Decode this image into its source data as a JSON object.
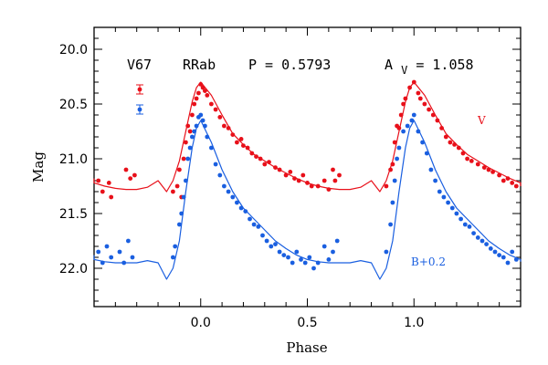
{
  "chart_data": {
    "type": "scatter",
    "xlabel": "Phase",
    "ylabel": "Mag",
    "xlim": [
      -0.5,
      1.5
    ],
    "ylim": [
      22.35,
      19.8
    ],
    "y_inverted": true,
    "xticks": [
      "0.0",
      "0.5",
      "1.0"
    ],
    "xtick_values": [
      0,
      0.5,
      1
    ],
    "yticks": [
      "20.0",
      "20.5",
      "21.0",
      "21.5",
      "22.0"
    ],
    "ytick_values": [
      20,
      20.5,
      21,
      21.5,
      22
    ],
    "grid": false,
    "annotations": {
      "star": "V67",
      "type": "RRab",
      "period": "P = 0.5793",
      "amp_prefix": "A",
      "amp_sub": "V",
      "amp_value": " = 1.058"
    },
    "series": [
      {
        "name": "V",
        "color": "#e8101a",
        "curve_x": [
          0,
          0.05,
          0.1,
          0.15,
          0.2,
          0.25,
          0.3,
          0.35,
          0.4,
          0.45,
          0.5,
          0.55,
          0.6,
          0.65,
          0.7,
          0.75,
          0.8,
          0.84,
          0.87,
          0.9,
          0.93,
          0.96,
          0.98,
          1
        ],
        "curve_y": [
          20.3,
          20.42,
          20.6,
          20.77,
          20.87,
          20.96,
          21.02,
          21.08,
          21.13,
          21.18,
          21.22,
          21.25,
          21.27,
          21.28,
          21.28,
          21.26,
          21.2,
          21.3,
          21.2,
          21.02,
          20.75,
          20.48,
          20.35,
          20.3
        ],
        "points": [
          [
            -0.48,
            21.2
          ],
          [
            -0.46,
            21.3
          ],
          [
            -0.43,
            21.22
          ],
          [
            -0.42,
            21.35
          ],
          [
            -0.35,
            21.1
          ],
          [
            -0.33,
            21.18
          ],
          [
            -0.31,
            21.15
          ],
          [
            -0.13,
            21.3
          ],
          [
            -0.11,
            21.25
          ],
          [
            -0.1,
            21.1
          ],
          [
            -0.09,
            21.35
          ],
          [
            -0.08,
            21.0
          ],
          [
            -0.07,
            20.85
          ],
          [
            -0.06,
            20.7
          ],
          [
            -0.05,
            20.75
          ],
          [
            -0.04,
            20.6
          ],
          [
            -0.03,
            20.5
          ],
          [
            -0.02,
            20.45
          ],
          [
            -0.01,
            20.4
          ],
          [
            0.0,
            20.32
          ],
          [
            0.01,
            20.35
          ],
          [
            0.02,
            20.38
          ],
          [
            0.03,
            20.42
          ],
          [
            0.05,
            20.5
          ],
          [
            0.07,
            20.55
          ],
          [
            0.09,
            20.62
          ],
          [
            0.11,
            20.7
          ],
          [
            0.13,
            20.72
          ],
          [
            0.15,
            20.78
          ],
          [
            0.17,
            20.85
          ],
          [
            0.19,
            20.82
          ],
          [
            0.2,
            20.88
          ],
          [
            0.22,
            20.9
          ],
          [
            0.24,
            20.95
          ],
          [
            0.26,
            20.98
          ],
          [
            0.28,
            21.0
          ],
          [
            0.3,
            21.05
          ],
          [
            0.32,
            21.03
          ],
          [
            0.35,
            21.08
          ],
          [
            0.37,
            21.1
          ],
          [
            0.4,
            21.15
          ],
          [
            0.42,
            21.12
          ],
          [
            0.44,
            21.18
          ],
          [
            0.46,
            21.2
          ],
          [
            0.48,
            21.15
          ],
          [
            0.5,
            21.22
          ],
          [
            0.52,
            21.25
          ],
          [
            0.55,
            21.25
          ],
          [
            0.58,
            21.2
          ],
          [
            0.6,
            21.28
          ],
          [
            0.62,
            21.1
          ],
          [
            0.63,
            21.2
          ],
          [
            0.65,
            21.15
          ],
          [
            0.87,
            21.25
          ],
          [
            0.89,
            21.1
          ],
          [
            0.9,
            21.05
          ],
          [
            0.91,
            20.85
          ],
          [
            0.92,
            20.7
          ],
          [
            0.93,
            20.72
          ],
          [
            0.94,
            20.6
          ],
          [
            0.95,
            20.5
          ],
          [
            0.96,
            20.45
          ],
          [
            0.98,
            20.35
          ],
          [
            1.0,
            20.3
          ],
          [
            1.02,
            20.4
          ],
          [
            1.03,
            20.45
          ],
          [
            1.05,
            20.5
          ],
          [
            1.07,
            20.55
          ],
          [
            1.09,
            20.6
          ],
          [
            1.11,
            20.65
          ],
          [
            1.13,
            20.72
          ],
          [
            1.15,
            20.8
          ],
          [
            1.17,
            20.85
          ],
          [
            1.19,
            20.87
          ],
          [
            1.21,
            20.9
          ],
          [
            1.23,
            20.95
          ],
          [
            1.25,
            21.0
          ],
          [
            1.27,
            21.02
          ],
          [
            1.3,
            21.05
          ],
          [
            1.33,
            21.08
          ],
          [
            1.35,
            21.1
          ],
          [
            1.37,
            21.12
          ],
          [
            1.4,
            21.15
          ],
          [
            1.42,
            21.2
          ],
          [
            1.44,
            21.18
          ],
          [
            1.46,
            21.22
          ],
          [
            1.48,
            21.25
          ]
        ]
      },
      {
        "name": "B+0.2",
        "color": "#1a5fe0",
        "curve_x": [
          0,
          0.05,
          0.1,
          0.15,
          0.2,
          0.25,
          0.3,
          0.35,
          0.4,
          0.45,
          0.5,
          0.55,
          0.6,
          0.65,
          0.7,
          0.75,
          0.8,
          0.84,
          0.87,
          0.9,
          0.93,
          0.96,
          0.98,
          1
        ],
        "curve_y": [
          20.65,
          20.85,
          21.1,
          21.3,
          21.45,
          21.55,
          21.65,
          21.75,
          21.82,
          21.88,
          21.92,
          21.94,
          21.95,
          21.95,
          21.95,
          21.93,
          21.95,
          22.1,
          22.0,
          21.75,
          21.3,
          20.9,
          20.72,
          20.65
        ],
        "points": [
          [
            -0.48,
            21.85
          ],
          [
            -0.46,
            21.95
          ],
          [
            -0.44,
            21.8
          ],
          [
            -0.42,
            21.9
          ],
          [
            -0.38,
            21.85
          ],
          [
            -0.36,
            21.95
          ],
          [
            -0.34,
            21.75
          ],
          [
            -0.32,
            21.9
          ],
          [
            -0.13,
            21.9
          ],
          [
            -0.12,
            21.8
          ],
          [
            -0.1,
            21.6
          ],
          [
            -0.09,
            21.5
          ],
          [
            -0.08,
            21.35
          ],
          [
            -0.07,
            21.2
          ],
          [
            -0.06,
            21.0
          ],
          [
            -0.05,
            20.9
          ],
          [
            -0.04,
            20.8
          ],
          [
            -0.03,
            20.75
          ],
          [
            -0.02,
            20.7
          ],
          [
            -0.01,
            20.62
          ],
          [
            0.0,
            20.6
          ],
          [
            0.01,
            20.65
          ],
          [
            0.02,
            20.7
          ],
          [
            0.03,
            20.8
          ],
          [
            0.05,
            20.9
          ],
          [
            0.07,
            21.05
          ],
          [
            0.09,
            21.15
          ],
          [
            0.11,
            21.25
          ],
          [
            0.13,
            21.3
          ],
          [
            0.15,
            21.35
          ],
          [
            0.17,
            21.4
          ],
          [
            0.19,
            21.45
          ],
          [
            0.21,
            21.48
          ],
          [
            0.23,
            21.55
          ],
          [
            0.25,
            21.6
          ],
          [
            0.27,
            21.62
          ],
          [
            0.29,
            21.7
          ],
          [
            0.31,
            21.75
          ],
          [
            0.33,
            21.8
          ],
          [
            0.35,
            21.78
          ],
          [
            0.37,
            21.85
          ],
          [
            0.39,
            21.88
          ],
          [
            0.41,
            21.9
          ],
          [
            0.43,
            21.95
          ],
          [
            0.45,
            21.85
          ],
          [
            0.47,
            21.92
          ],
          [
            0.49,
            21.95
          ],
          [
            0.51,
            21.9
          ],
          [
            0.53,
            22.0
          ],
          [
            0.55,
            21.95
          ],
          [
            0.58,
            21.8
          ],
          [
            0.6,
            21.92
          ],
          [
            0.62,
            21.85
          ],
          [
            0.64,
            21.75
          ],
          [
            0.87,
            21.85
          ],
          [
            0.89,
            21.6
          ],
          [
            0.9,
            21.4
          ],
          [
            0.91,
            21.2
          ],
          [
            0.92,
            21.0
          ],
          [
            0.93,
            20.9
          ],
          [
            0.95,
            20.75
          ],
          [
            0.97,
            20.7
          ],
          [
            0.99,
            20.65
          ],
          [
            1.0,
            20.6
          ],
          [
            1.02,
            20.75
          ],
          [
            1.04,
            20.85
          ],
          [
            1.06,
            20.95
          ],
          [
            1.08,
            21.1
          ],
          [
            1.1,
            21.2
          ],
          [
            1.12,
            21.3
          ],
          [
            1.14,
            21.35
          ],
          [
            1.16,
            21.4
          ],
          [
            1.18,
            21.45
          ],
          [
            1.2,
            21.5
          ],
          [
            1.22,
            21.55
          ],
          [
            1.24,
            21.6
          ],
          [
            1.26,
            21.62
          ],
          [
            1.28,
            21.68
          ],
          [
            1.3,
            21.72
          ],
          [
            1.32,
            21.75
          ],
          [
            1.34,
            21.78
          ],
          [
            1.36,
            21.82
          ],
          [
            1.38,
            21.85
          ],
          [
            1.4,
            21.88
          ],
          [
            1.42,
            21.9
          ],
          [
            1.44,
            21.95
          ],
          [
            1.46,
            21.85
          ],
          [
            1.48,
            21.92
          ]
        ]
      }
    ]
  }
}
